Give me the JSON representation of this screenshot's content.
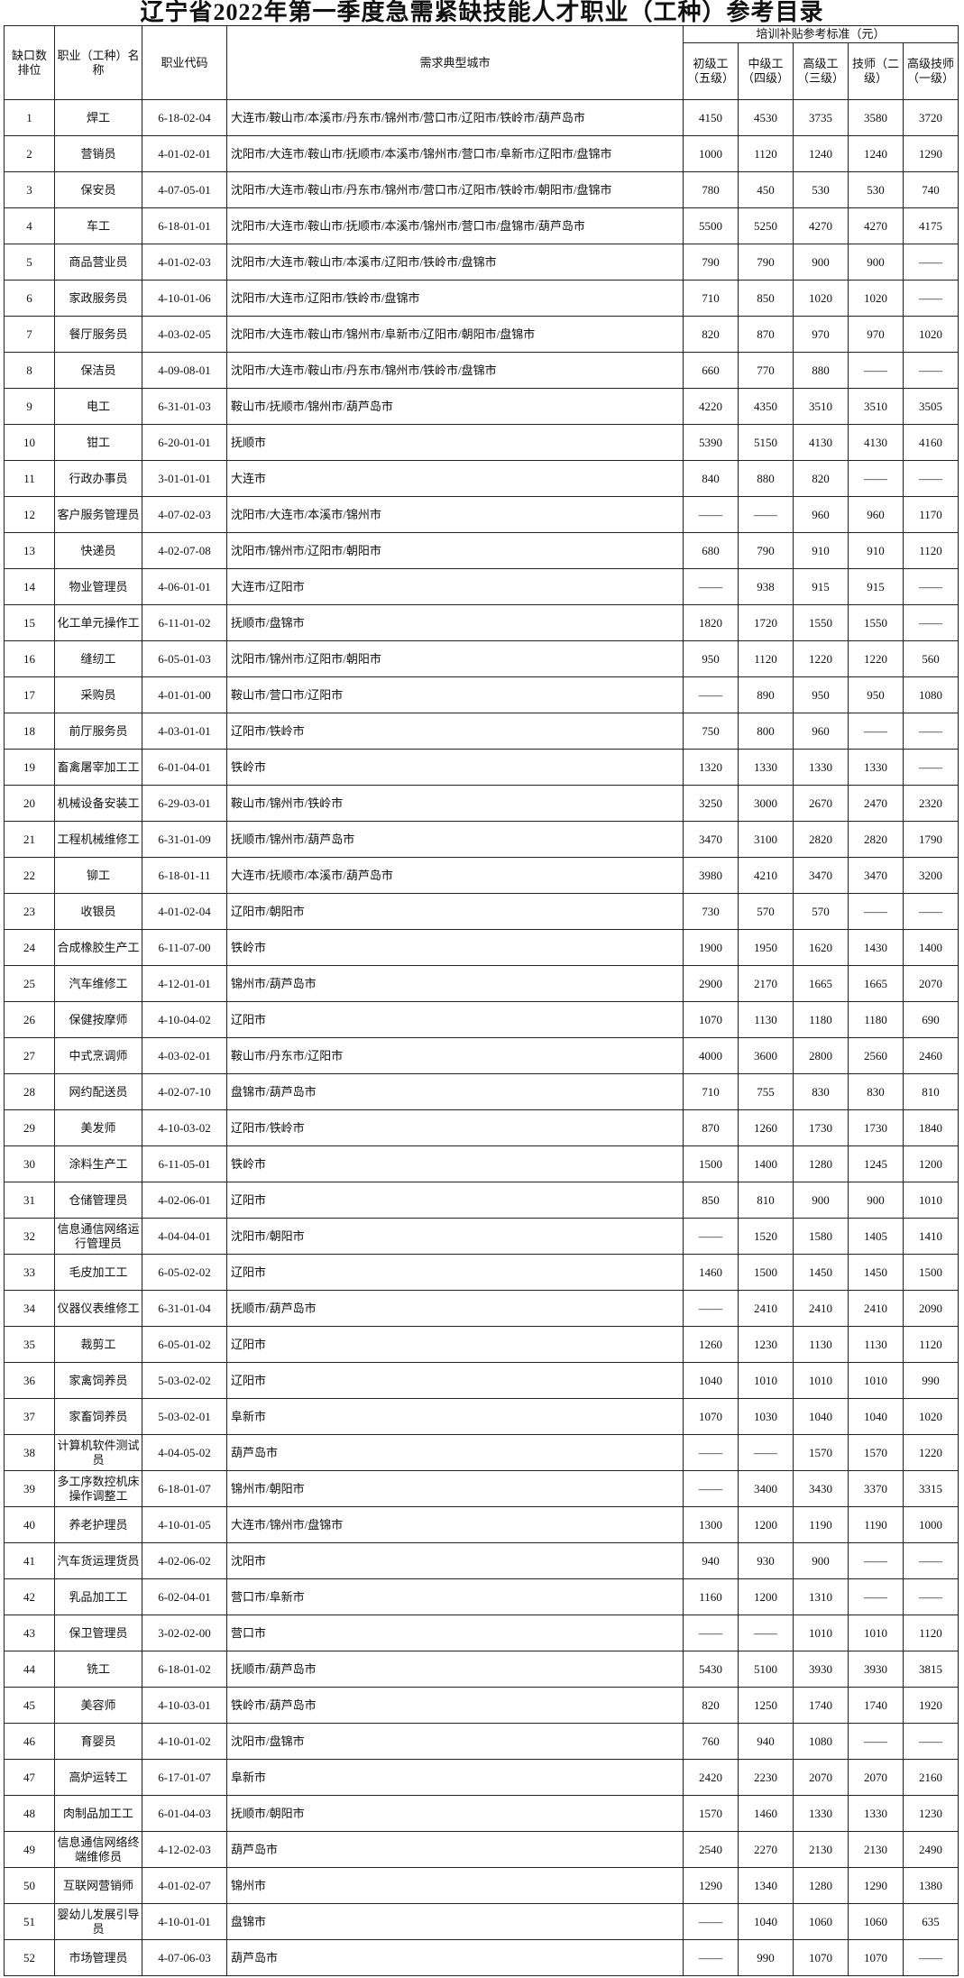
{
  "title": "辽宁省2022年第一季度急需紧缺技能人才职业（工种）参考目录",
  "header": {
    "rank": "缺口数排位",
    "name": "职业（工种）名称",
    "code": "职业代码",
    "cities": "需求典型城市",
    "subsidy_group": "培训补贴参考标准（元）",
    "levels": [
      "初级工（五级）",
      "中级工（四级）",
      "高级工（三级）",
      "技师（二级）",
      "高级技师（一级）"
    ]
  },
  "rows": [
    [
      "1",
      "焊工",
      "6-18-02-04",
      "大连市/鞍山市/本溪市/丹东市/锦州市/营口市/辽阳市/铁岭市/葫芦岛市",
      "4150",
      "4530",
      "3735",
      "3580",
      "3720"
    ],
    [
      "2",
      "营销员",
      "4-01-02-01",
      "沈阳市/大连市/鞍山市/抚顺市/本溪市/锦州市/营口市/阜新市/辽阳市/盘锦市",
      "1000",
      "1120",
      "1240",
      "1240",
      "1290"
    ],
    [
      "3",
      "保安员",
      "4-07-05-01",
      "沈阳市/大连市/鞍山市/丹东市/锦州市/营口市/辽阳市/铁岭市/朝阳市/盘锦市",
      "780",
      "450",
      "530",
      "530",
      "740"
    ],
    [
      "4",
      "车工",
      "6-18-01-01",
      "沈阳市/大连市/鞍山市/抚顺市/本溪市/锦州市/营口市/盘锦市/葫芦岛市",
      "5500",
      "5250",
      "4270",
      "4270",
      "4175"
    ],
    [
      "5",
      "商品营业员",
      "4-01-02-03",
      "沈阳市/大连市/鞍山市/本溪市/辽阳市/铁岭市/盘锦市",
      "790",
      "790",
      "900",
      "900",
      "——"
    ],
    [
      "6",
      "家政服务员",
      "4-10-01-06",
      "沈阳市/大连市/辽阳市/铁岭市/盘锦市",
      "710",
      "850",
      "1020",
      "1020",
      "——"
    ],
    [
      "7",
      "餐厅服务员",
      "4-03-02-05",
      "沈阳市/大连市/鞍山市/锦州市/阜新市/辽阳市/朝阳市/盘锦市",
      "820",
      "870",
      "970",
      "970",
      "1020"
    ],
    [
      "8",
      "保洁员",
      "4-09-08-01",
      "沈阳市/大连市/鞍山市/丹东市/锦州市/铁岭市/盘锦市",
      "660",
      "770",
      "880",
      "——",
      "——"
    ],
    [
      "9",
      "电工",
      "6-31-01-03",
      "鞍山市/抚顺市/锦州市/葫芦岛市",
      "4220",
      "4350",
      "3510",
      "3510",
      "3505"
    ],
    [
      "10",
      "钳工",
      "6-20-01-01",
      "抚顺市",
      "5390",
      "5150",
      "4130",
      "4130",
      "4160"
    ],
    [
      "11",
      "行政办事员",
      "3-01-01-01",
      "大连市",
      "840",
      "880",
      "820",
      "——",
      "——"
    ],
    [
      "12",
      "客户服务管理员",
      "4-07-02-03",
      "沈阳市/大连市/本溪市/锦州市",
      "——",
      "——",
      "960",
      "960",
      "1170"
    ],
    [
      "13",
      "快递员",
      "4-02-07-08",
      "沈阳市/锦州市/辽阳市/朝阳市",
      "680",
      "790",
      "910",
      "910",
      "1120"
    ],
    [
      "14",
      "物业管理员",
      "4-06-01-01",
      "大连市/辽阳市",
      "——",
      "938",
      "915",
      "915",
      "——"
    ],
    [
      "15",
      "化工单元操作工",
      "6-11-01-02",
      "抚顺市/盘锦市",
      "1820",
      "1720",
      "1550",
      "1550",
      "——"
    ],
    [
      "16",
      "缝纫工",
      "6-05-01-03",
      "沈阳市/锦州市/辽阳市/朝阳市",
      "950",
      "1120",
      "1220",
      "1220",
      "560"
    ],
    [
      "17",
      "采购员",
      "4-01-01-00",
      "鞍山市/营口市/辽阳市",
      "——",
      "890",
      "950",
      "950",
      "1080"
    ],
    [
      "18",
      "前厅服务员",
      "4-03-01-01",
      "辽阳市/铁岭市",
      "750",
      "800",
      "960",
      "——",
      "——"
    ],
    [
      "19",
      "畜禽屠宰加工工",
      "6-01-04-01",
      "铁岭市",
      "1320",
      "1330",
      "1330",
      "1330",
      "——"
    ],
    [
      "20",
      "机械设备安装工",
      "6-29-03-01",
      "鞍山市/锦州市/铁岭市",
      "3250",
      "3000",
      "2670",
      "2470",
      "2320"
    ],
    [
      "21",
      "工程机械维修工",
      "6-31-01-09",
      "抚顺市/锦州市/葫芦岛市",
      "3470",
      "3100",
      "2820",
      "2820",
      "1790"
    ],
    [
      "22",
      "铆工",
      "6-18-01-11",
      "大连市/抚顺市/本溪市/葫芦岛市",
      "3980",
      "4210",
      "3470",
      "3470",
      "3200"
    ],
    [
      "23",
      "收银员",
      "4-01-02-04",
      "辽阳市/朝阳市",
      "730",
      "570",
      "570",
      "——",
      "——"
    ],
    [
      "24",
      "合成橡胶生产工",
      "6-11-07-00",
      "铁岭市",
      "1900",
      "1950",
      "1620",
      "1430",
      "1400"
    ],
    [
      "25",
      "汽车维修工",
      "4-12-01-01",
      "锦州市/葫芦岛市",
      "2900",
      "2170",
      "1665",
      "1665",
      "2070"
    ],
    [
      "26",
      "保健按摩师",
      "4-10-04-02",
      "辽阳市",
      "1070",
      "1130",
      "1180",
      "1180",
      "690"
    ],
    [
      "27",
      "中式烹调师",
      "4-03-02-01",
      "鞍山市/丹东市/辽阳市",
      "4000",
      "3600",
      "2800",
      "2560",
      "2460"
    ],
    [
      "28",
      "网约配送员",
      "4-02-07-10",
      "盘锦市/葫芦岛市",
      "710",
      "755",
      "830",
      "830",
      "810"
    ],
    [
      "29",
      "美发师",
      "4-10-03-02",
      "辽阳市/铁岭市",
      "870",
      "1260",
      "1730",
      "1730",
      "1840"
    ],
    [
      "30",
      "涂料生产工",
      "6-11-05-01",
      "铁岭市",
      "1500",
      "1400",
      "1280",
      "1245",
      "1200"
    ],
    [
      "31",
      "仓储管理员",
      "4-02-06-01",
      "辽阳市",
      "850",
      "810",
      "900",
      "900",
      "1010"
    ],
    [
      "32",
      "信息通信网络运行管理员",
      "4-04-04-01",
      "沈阳市/朝阳市",
      "——",
      "1520",
      "1580",
      "1405",
      "1410"
    ],
    [
      "33",
      "毛皮加工工",
      "6-05-02-02",
      "辽阳市",
      "1460",
      "1500",
      "1450",
      "1450",
      "1500"
    ],
    [
      "34",
      "仪器仪表维修工",
      "6-31-01-04",
      "抚顺市/葫芦岛市",
      "——",
      "2410",
      "2410",
      "2410",
      "2090"
    ],
    [
      "35",
      "裁剪工",
      "6-05-01-02",
      "辽阳市",
      "1260",
      "1230",
      "1130",
      "1130",
      "1120"
    ],
    [
      "36",
      "家禽饲养员",
      "5-03-02-02",
      "辽阳市",
      "1040",
      "1010",
      "1010",
      "1010",
      "990"
    ],
    [
      "37",
      "家畜饲养员",
      "5-03-02-01",
      "阜新市",
      "1070",
      "1030",
      "1040",
      "1040",
      "1020"
    ],
    [
      "38",
      "计算机软件测试员",
      "4-04-05-02",
      "葫芦岛市",
      "——",
      "——",
      "1570",
      "1570",
      "1220"
    ],
    [
      "39",
      "多工序数控机床操作调整工",
      "6-18-01-07",
      "锦州市/朝阳市",
      "——",
      "3400",
      "3430",
      "3370",
      "3315"
    ],
    [
      "40",
      "养老护理员",
      "4-10-01-05",
      "大连市/锦州市/盘锦市",
      "1300",
      "1200",
      "1190",
      "1190",
      "1000"
    ],
    [
      "41",
      "汽车货运理货员",
      "4-02-06-02",
      "沈阳市",
      "940",
      "930",
      "900",
      "——",
      "——"
    ],
    [
      "42",
      "乳品加工工",
      "6-02-04-01",
      "营口市/阜新市",
      "1160",
      "1200",
      "1310",
      "——",
      "——"
    ],
    [
      "43",
      "保卫管理员",
      "3-02-02-00",
      "营口市",
      "——",
      "——",
      "1010",
      "1010",
      "1120"
    ],
    [
      "44",
      "铣工",
      "6-18-01-02",
      "抚顺市/葫芦岛市",
      "5430",
      "5100",
      "3930",
      "3930",
      "3815"
    ],
    [
      "45",
      "美容师",
      "4-10-03-01",
      "铁岭市/葫芦岛市",
      "820",
      "1250",
      "1740",
      "1740",
      "1920"
    ],
    [
      "46",
      "育婴员",
      "4-10-01-02",
      "沈阳市/盘锦市",
      "760",
      "940",
      "1080",
      "——",
      "——"
    ],
    [
      "47",
      "高炉运转工",
      "6-17-01-07",
      "阜新市",
      "2420",
      "2230",
      "2070",
      "2070",
      "2160"
    ],
    [
      "48",
      "肉制品加工工",
      "6-01-04-03",
      "抚顺市/朝阳市",
      "1570",
      "1460",
      "1330",
      "1330",
      "1230"
    ],
    [
      "49",
      "信息通信网络终端维修员",
      "4-12-02-03",
      "葫芦岛市",
      "2540",
      "2270",
      "2130",
      "2130",
      "2490"
    ],
    [
      "50",
      "互联网营销师",
      "4-01-02-07",
      "锦州市",
      "1290",
      "1340",
      "1280",
      "1290",
      "1380"
    ],
    [
      "51",
      "婴幼儿发展引导员",
      "4-10-01-01",
      "盘锦市",
      "——",
      "1040",
      "1060",
      "1060",
      "635"
    ],
    [
      "52",
      "市场管理员",
      "4-07-06-03",
      "葫芦岛市",
      "——",
      "990",
      "1070",
      "1070",
      "——"
    ]
  ]
}
